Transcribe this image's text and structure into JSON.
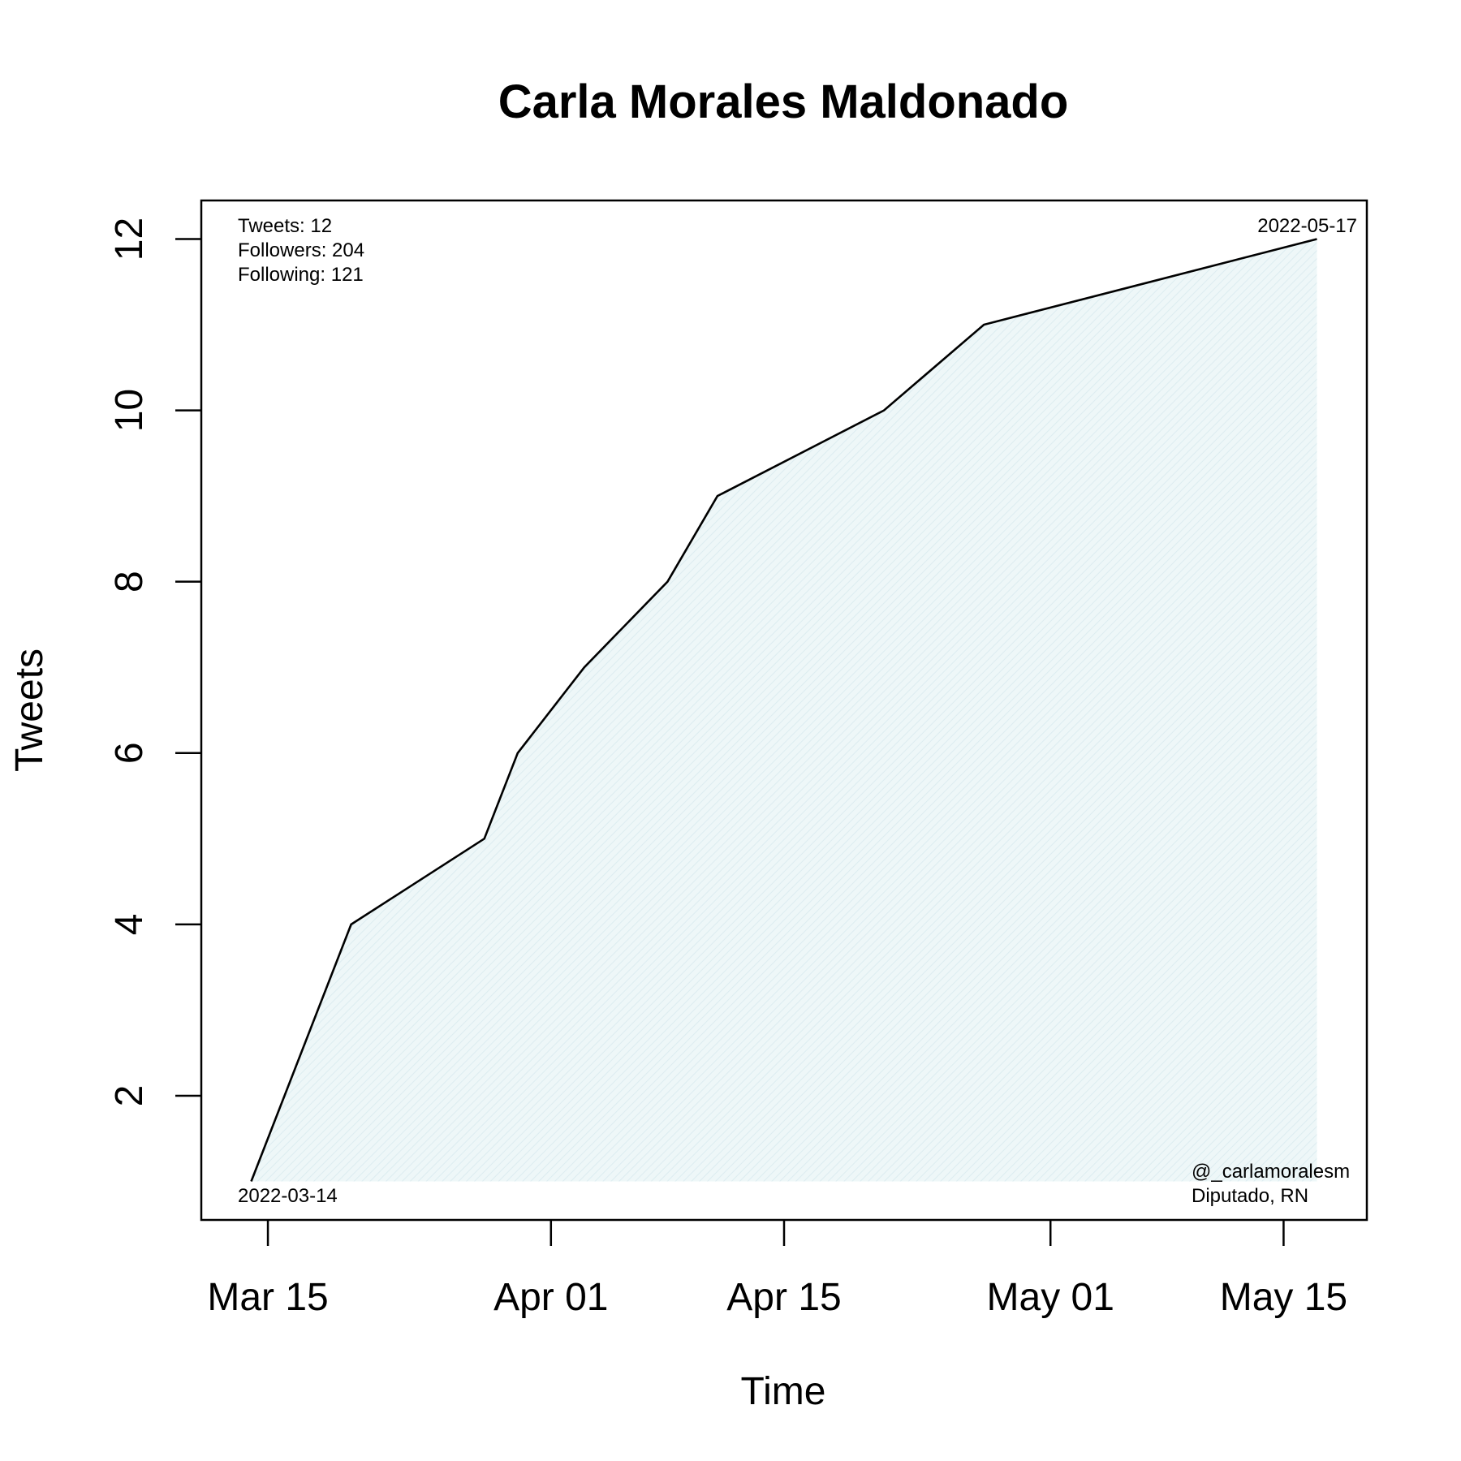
{
  "chart_data": {
    "type": "area",
    "title": "Carla Morales Maldonado",
    "xlabel": "Time",
    "ylabel": "Tweets",
    "x_dates": [
      "2022-03-14",
      "2022-03-20",
      "2022-03-28",
      "2022-03-30",
      "2022-04-03",
      "2022-04-08",
      "2022-04-11",
      "2022-04-21",
      "2022-04-27",
      "2022-05-17"
    ],
    "y": [
      1,
      4,
      5,
      6,
      7,
      8,
      9,
      10,
      11,
      12
    ],
    "xlim": [
      "2022-03-11",
      "2022-05-20"
    ],
    "ylim": [
      0.55,
      12.45
    ],
    "x_ticks": [
      {
        "date": "2022-03-15",
        "label": "Mar 15"
      },
      {
        "date": "2022-04-01",
        "label": "Apr 01"
      },
      {
        "date": "2022-04-15",
        "label": "Apr 15"
      },
      {
        "date": "2022-05-01",
        "label": "May 01"
      },
      {
        "date": "2022-05-15",
        "label": "May 15"
      }
    ],
    "y_ticks": [
      {
        "value": 2,
        "label": "2"
      },
      {
        "value": 4,
        "label": "4"
      },
      {
        "value": 6,
        "label": "6"
      },
      {
        "value": 8,
        "label": "8"
      },
      {
        "value": 10,
        "label": "10"
      },
      {
        "value": 12,
        "label": "12"
      }
    ],
    "grid": false,
    "fill_color": "#eaf4f6",
    "line_color": "#000000",
    "annotations": {
      "tweets": "Tweets: 12",
      "followers": "Followers: 204",
      "following": "Following: 121",
      "start_date": "2022-03-14",
      "end_date": "2022-05-17",
      "handle": "@_carlamoralesm",
      "role": "Diputado, RN"
    }
  }
}
